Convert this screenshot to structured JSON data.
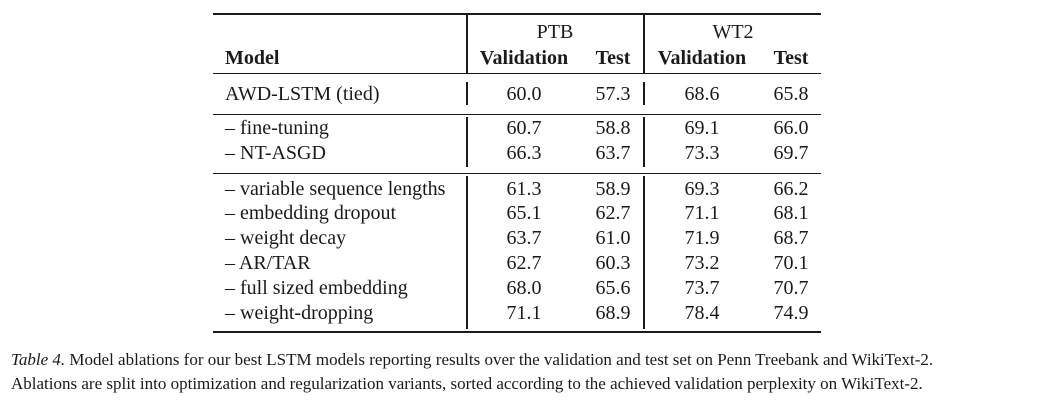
{
  "table": {
    "header": {
      "model": "Model",
      "group_ptb": "PTB",
      "group_wt2": "WT2",
      "ptb_validation": "Validation",
      "ptb_test": "Test",
      "wt2_validation": "Validation",
      "wt2_test": "Test"
    },
    "baseline": {
      "model": "AWD-LSTM (tied)",
      "ptb_val": "60.0",
      "ptb_test": "57.3",
      "wt2_val": "68.6",
      "wt2_test": "65.8"
    },
    "optimization": [
      {
        "model": "– fine-tuning",
        "ptb_val": "60.7",
        "ptb_test": "58.8",
        "wt2_val": "69.1",
        "wt2_test": "66.0"
      },
      {
        "model": "– NT-ASGD",
        "ptb_val": "66.3",
        "ptb_test": "63.7",
        "wt2_val": "73.3",
        "wt2_test": "69.7"
      }
    ],
    "regularization": [
      {
        "model": "– variable sequence lengths",
        "ptb_val": "61.3",
        "ptb_test": "58.9",
        "wt2_val": "69.3",
        "wt2_test": "66.2"
      },
      {
        "model": "– embedding dropout",
        "ptb_val": "65.1",
        "ptb_test": "62.7",
        "wt2_val": "71.1",
        "wt2_test": "68.1"
      },
      {
        "model": "– weight decay",
        "ptb_val": "63.7",
        "ptb_test": "61.0",
        "wt2_val": "71.9",
        "wt2_test": "68.7"
      },
      {
        "model": "– AR/TAR",
        "ptb_val": "62.7",
        "ptb_test": "60.3",
        "wt2_val": "73.2",
        "wt2_test": "70.1"
      },
      {
        "model": "– full sized embedding",
        "ptb_val": "68.0",
        "ptb_test": "65.6",
        "wt2_val": "73.7",
        "wt2_test": "70.7"
      },
      {
        "model": "– weight-dropping",
        "ptb_val": "71.1",
        "ptb_test": "68.9",
        "wt2_val": "78.4",
        "wt2_test": "74.9"
      }
    ]
  },
  "caption": {
    "label": "Table 4.",
    "line1": "Model ablations for our best LSTM models reporting results over the validation and test set on Penn Treebank and WikiText-2.",
    "line2": "Ablations are split into optimization and regularization variants, sorted according to the achieved validation perplexity on WikiText-2."
  }
}
